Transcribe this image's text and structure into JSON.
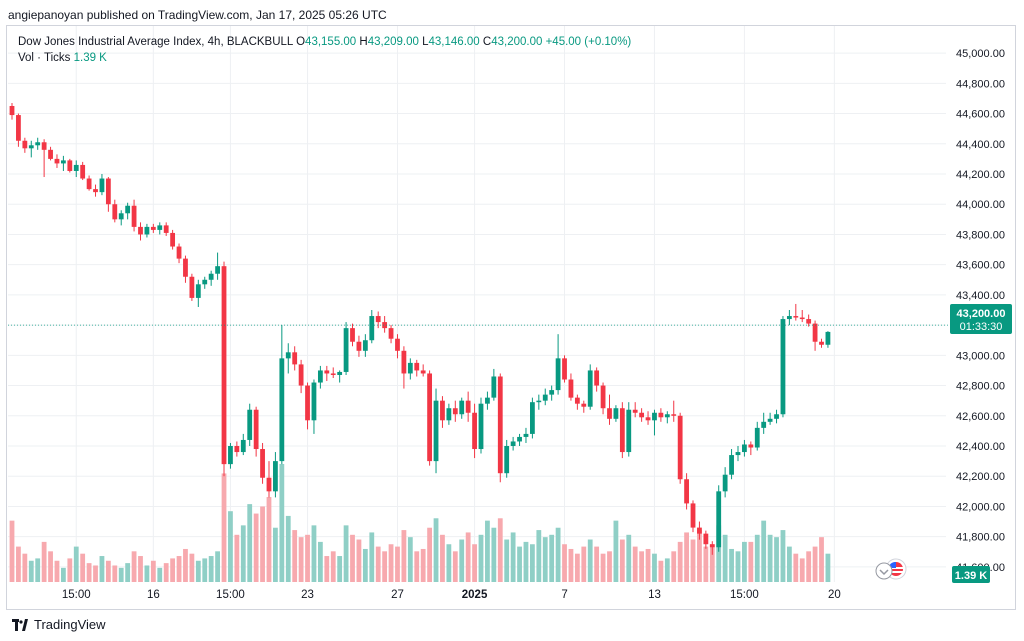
{
  "header": {
    "publisher_line": "angiepanoyan published on TradingView.com, Jan 17, 2025 05:26 UTC"
  },
  "legend": {
    "symbol": "Dow Jones Industrial Average Index, 4h, BLACKBULL",
    "open_label": "O",
    "open": "43,155.00",
    "high_label": "H",
    "high": "43,209.00",
    "low_label": "L",
    "low": "43,146.00",
    "close_label": "C",
    "close": "43,200.00",
    "change": "+45.00 (+0.10%)",
    "volume_label": "Vol · Ticks",
    "volume": "1.39 K"
  },
  "price_badge": {
    "price": "43,200.00",
    "countdown": "01:33:30"
  },
  "volume_badge": "1.39 K",
  "footer": {
    "brand": "TradingView"
  },
  "colors": {
    "up": "#089981",
    "down": "#f23645",
    "up_vol": "#8fcfc6",
    "down_vol": "#f7a9ae",
    "grid": "#eef0f3"
  },
  "chart_data": {
    "type": "candlestick",
    "ylim": [
      41500,
      45100
    ],
    "y_ticks": [
      "45,000.00",
      "44,800.00",
      "44,600.00",
      "44,400.00",
      "44,200.00",
      "44,000.00",
      "43,800.00",
      "43,600.00",
      "43,400.00",
      "43,200.00",
      "43,000.00",
      "42,800.00",
      "42,600.00",
      "42,400.00",
      "42,200.00",
      "42,000.00",
      "41,800.00",
      "41,600.00"
    ],
    "y_tick_values": [
      45000,
      44800,
      44600,
      44400,
      44200,
      44000,
      43800,
      43600,
      43400,
      43200,
      43000,
      42800,
      42600,
      42400,
      42200,
      42000,
      41800,
      41600
    ],
    "x_tick_labels": [
      "15:00",
      "16",
      "15:00",
      "23",
      "27",
      "2025",
      "7",
      "13",
      "15:00",
      "20"
    ],
    "x_tick_bars": [
      10,
      22,
      34,
      46,
      60,
      72,
      86,
      100,
      114,
      128
    ],
    "last_price": 43200,
    "candles": [
      [
        44650,
        44670,
        44560,
        44590
      ],
      [
        44590,
        44600,
        44380,
        44420
      ],
      [
        44420,
        44440,
        44340,
        44370
      ],
      [
        44370,
        44420,
        44310,
        44390
      ],
      [
        44390,
        44440,
        44360,
        44410
      ],
      [
        44410,
        44430,
        44180,
        44360
      ],
      [
        44360,
        44380,
        44290,
        44300
      ],
      [
        44300,
        44330,
        44240,
        44270
      ],
      [
        44270,
        44320,
        44220,
        44290
      ],
      [
        44290,
        44300,
        44210,
        44220
      ],
      [
        44220,
        44290,
        44180,
        44260
      ],
      [
        44260,
        44280,
        44160,
        44170
      ],
      [
        44170,
        44190,
        44090,
        44100
      ],
      [
        44100,
        44130,
        44050,
        44080
      ],
      [
        44080,
        44200,
        44060,
        44170
      ],
      [
        44170,
        44180,
        43950,
        44000
      ],
      [
        44000,
        44030,
        43880,
        43900
      ],
      [
        43900,
        43960,
        43860,
        43940
      ],
      [
        43940,
        44010,
        43900,
        43990
      ],
      [
        43990,
        44030,
        43820,
        43850
      ],
      [
        43850,
        43880,
        43760,
        43800
      ],
      [
        43800,
        43870,
        43780,
        43850
      ],
      [
        43850,
        43870,
        43810,
        43830
      ],
      [
        43830,
        43880,
        43800,
        43860
      ],
      [
        43860,
        43880,
        43790,
        43810
      ],
      [
        43810,
        43830,
        43700,
        43720
      ],
      [
        43720,
        43740,
        43610,
        43640
      ],
      [
        43640,
        43660,
        43480,
        43520
      ],
      [
        43520,
        43540,
        43360,
        43380
      ],
      [
        43380,
        43500,
        43320,
        43470
      ],
      [
        43470,
        43520,
        43440,
        43500
      ],
      [
        43500,
        43560,
        43460,
        43540
      ],
      [
        43540,
        43680,
        43500,
        43590
      ],
      [
        43590,
        43620,
        42200,
        42280
      ],
      [
        42280,
        42420,
        42250,
        42400
      ],
      [
        42400,
        42430,
        42330,
        42360
      ],
      [
        42360,
        42480,
        42340,
        42440
      ],
      [
        42440,
        42680,
        42400,
        42640
      ],
      [
        42640,
        42660,
        42330,
        42380
      ],
      [
        42380,
        42420,
        42150,
        42190
      ],
      [
        42190,
        42300,
        42060,
        42100
      ],
      [
        42100,
        42360,
        42060,
        42300
      ],
      [
        42300,
        43200,
        42280,
        42980
      ],
      [
        42980,
        43080,
        42880,
        43020
      ],
      [
        43020,
        43060,
        42900,
        42940
      ],
      [
        42940,
        42970,
        42750,
        42800
      ],
      [
        42800,
        42820,
        42510,
        42570
      ],
      [
        42570,
        42840,
        42480,
        42820
      ],
      [
        42820,
        42930,
        42780,
        42900
      ],
      [
        42900,
        42930,
        42830,
        42880
      ],
      [
        42880,
        42920,
        42850,
        42870
      ],
      [
        42870,
        42900,
        42820,
        42890
      ],
      [
        42890,
        43220,
        42870,
        43180
      ],
      [
        43180,
        43210,
        43060,
        43090
      ],
      [
        43090,
        43130,
        42990,
        43030
      ],
      [
        43030,
        43140,
        42990,
        43100
      ],
      [
        43100,
        43300,
        43080,
        43260
      ],
      [
        43260,
        43290,
        43180,
        43220
      ],
      [
        43220,
        43260,
        43150,
        43180
      ],
      [
        43180,
        43200,
        43080,
        43110
      ],
      [
        43110,
        43140,
        42980,
        43030
      ],
      [
        43030,
        43060,
        42780,
        42880
      ],
      [
        42880,
        42980,
        42840,
        42950
      ],
      [
        42950,
        42970,
        42860,
        42900
      ],
      [
        42900,
        42940,
        42860,
        42880
      ],
      [
        42880,
        42900,
        42270,
        42300
      ],
      [
        42300,
        42780,
        42220,
        42700
      ],
      [
        42700,
        42730,
        42520,
        42570
      ],
      [
        42570,
        42680,
        42540,
        42650
      ],
      [
        42650,
        42700,
        42560,
        42610
      ],
      [
        42610,
        42720,
        42580,
        42700
      ],
      [
        42700,
        42760,
        42560,
        42620
      ],
      [
        42620,
        42680,
        42320,
        42380
      ],
      [
        42380,
        42720,
        42350,
        42680
      ],
      [
        42680,
        42760,
        42640,
        42720
      ],
      [
        42720,
        42910,
        42700,
        42860
      ],
      [
        42860,
        42880,
        42160,
        42220
      ],
      [
        42220,
        42440,
        42190,
        42400
      ],
      [
        42400,
        42460,
        42370,
        42430
      ],
      [
        42430,
        42480,
        42400,
        42460
      ],
      [
        42460,
        42520,
        42420,
        42480
      ],
      [
        42480,
        42720,
        42450,
        42690
      ],
      [
        42690,
        42740,
        42640,
        42700
      ],
      [
        42700,
        42780,
        42670,
        42740
      ],
      [
        42740,
        42800,
        42700,
        42770
      ],
      [
        42770,
        43140,
        42740,
        42980
      ],
      [
        42980,
        43000,
        42820,
        42840
      ],
      [
        42840,
        42880,
        42700,
        42720
      ],
      [
        42720,
        42740,
        42640,
        42680
      ],
      [
        42680,
        42700,
        42620,
        42660
      ],
      [
        42660,
        42940,
        42640,
        42900
      ],
      [
        42900,
        42920,
        42760,
        42800
      ],
      [
        42800,
        42820,
        42610,
        42650
      ],
      [
        42650,
        42740,
        42540,
        42580
      ],
      [
        42580,
        42670,
        42560,
        42650
      ],
      [
        42650,
        42690,
        42320,
        42360
      ],
      [
        42360,
        42690,
        42330,
        42640
      ],
      [
        42640,
        42690,
        42590,
        42620
      ],
      [
        42620,
        42650,
        42560,
        42590
      ],
      [
        42590,
        42630,
        42540,
        42570
      ],
      [
        42570,
        42640,
        42470,
        42620
      ],
      [
        42620,
        42650,
        42560,
        42590
      ],
      [
        42590,
        42630,
        42550,
        42610
      ],
      [
        42610,
        42700,
        42560,
        42600
      ],
      [
        42600,
        42620,
        42150,
        42180
      ],
      [
        42180,
        42220,
        41980,
        42020
      ],
      [
        42020,
        42040,
        41830,
        41860
      ],
      [
        41860,
        41900,
        41780,
        41820
      ],
      [
        41820,
        41840,
        41720,
        41750
      ],
      [
        41750,
        41770,
        41680,
        41730
      ],
      [
        41730,
        42140,
        41700,
        42100
      ],
      [
        42100,
        42260,
        42060,
        42210
      ],
      [
        42210,
        42380,
        42180,
        42340
      ],
      [
        42340,
        42400,
        42300,
        42360
      ],
      [
        42360,
        42440,
        42330,
        42410
      ],
      [
        42410,
        42430,
        42340,
        42390
      ],
      [
        42390,
        42560,
        42370,
        42520
      ],
      [
        42520,
        42620,
        42480,
        42560
      ],
      [
        42560,
        42620,
        42540,
        42580
      ],
      [
        42580,
        42640,
        42550,
        42610
      ],
      [
        42610,
        43260,
        42590,
        43240
      ],
      [
        43240,
        43300,
        43200,
        43260
      ],
      [
        43260,
        43340,
        43230,
        43250
      ],
      [
        43250,
        43300,
        43220,
        43240
      ],
      [
        43240,
        43270,
        43190,
        43210
      ],
      [
        43210,
        43230,
        43030,
        43090
      ],
      [
        43090,
        43110,
        43050,
        43070
      ],
      [
        43070,
        43160,
        43050,
        43155
      ]
    ],
    "volumes": [
      52,
      30,
      24,
      18,
      20,
      34,
      26,
      18,
      12,
      20,
      30,
      24,
      16,
      14,
      22,
      18,
      14,
      12,
      16,
      26,
      22,
      14,
      18,
      12,
      16,
      20,
      22,
      28,
      24,
      18,
      20,
      22,
      26,
      92,
      60,
      40,
      48,
      66,
      58,
      64,
      72,
      46,
      100,
      56,
      44,
      38,
      40,
      48,
      34,
      22,
      26,
      22,
      48,
      40,
      36,
      28,
      42,
      30,
      26,
      32,
      30,
      44,
      38,
      26,
      28,
      46,
      54,
      40,
      32,
      26,
      36,
      42,
      32,
      40,
      52,
      46,
      54,
      36,
      42,
      30,
      34,
      32,
      44,
      38,
      40,
      46,
      32,
      28,
      24,
      30,
      36,
      30,
      24,
      26,
      52,
      36,
      40,
      30,
      26,
      28,
      24,
      18,
      20,
      26,
      34,
      42,
      36,
      44,
      30,
      32,
      48,
      40,
      28,
      26,
      34,
      34,
      40,
      52,
      40,
      38,
      44,
      30,
      24,
      20,
      26,
      30,
      38,
      24
    ]
  }
}
